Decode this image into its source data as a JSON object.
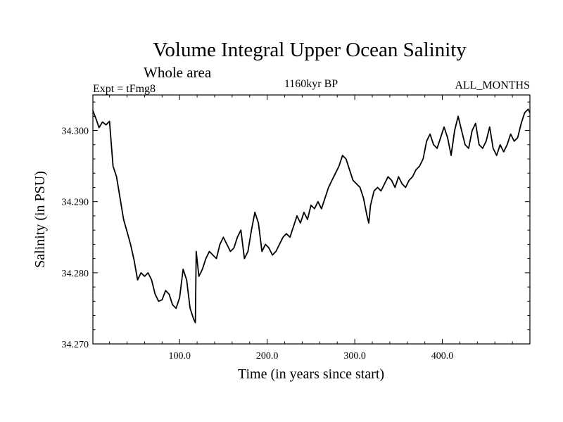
{
  "chart_data": {
    "type": "line",
    "title": "Volume Integral Upper Ocean Salinity",
    "subtitle": "Whole area",
    "left_string": "Expt = tFmg8",
    "center_string": "1160kyr BP",
    "right_string": "ALL_MONTHS",
    "xlabel": "Time (in years since start)",
    "ylabel": "Salinity (in PSU)",
    "xlim": [
      1,
      500
    ],
    "ylim": [
      34.27,
      34.305
    ],
    "xticks": [
      100,
      200,
      300,
      400
    ],
    "xtick_labels": [
      "100.0",
      "200.0",
      "300.0",
      "400.0"
    ],
    "yticks": [
      34.27,
      34.28,
      34.29,
      34.3
    ],
    "ytick_labels": [
      "34.270",
      "34.280",
      "34.290",
      "34.300"
    ],
    "grid": false,
    "series": [
      {
        "name": "Salinity",
        "x": [
          1,
          5,
          8,
          12,
          16,
          20,
          24,
          28,
          32,
          36,
          40,
          44,
          48,
          52,
          56,
          60,
          64,
          68,
          72,
          76,
          80,
          84,
          88,
          92,
          96,
          100,
          104,
          108,
          112,
          116,
          118,
          119,
          122,
          126,
          130,
          134,
          138,
          142,
          146,
          150,
          154,
          158,
          162,
          166,
          170,
          174,
          178,
          182,
          186,
          190,
          194,
          198,
          202,
          206,
          210,
          214,
          218,
          222,
          226,
          230,
          234,
          238,
          242,
          246,
          250,
          254,
          258,
          262,
          266,
          270,
          274,
          278,
          282,
          286,
          290,
          294,
          298,
          302,
          306,
          310,
          314,
          316,
          318,
          322,
          326,
          330,
          334,
          338,
          342,
          346,
          350,
          354,
          358,
          362,
          366,
          370,
          374,
          378,
          382,
          386,
          390,
          394,
          398,
          402,
          406,
          410,
          414,
          418,
          422,
          426,
          430,
          434,
          438,
          442,
          446,
          450,
          454,
          458,
          462,
          466,
          470,
          474,
          478,
          482,
          486,
          490,
          494,
          498,
          500
        ],
        "values": [
          34.3028,
          34.3015,
          34.3004,
          34.3012,
          34.3008,
          34.3013,
          34.295,
          34.2935,
          34.2905,
          34.2875,
          34.2858,
          34.284,
          34.2818,
          34.279,
          34.28,
          34.2795,
          34.28,
          34.279,
          34.277,
          34.276,
          34.2762,
          34.2775,
          34.277,
          34.2755,
          34.275,
          34.2765,
          34.2805,
          34.279,
          34.275,
          34.2735,
          34.273,
          34.283,
          34.2795,
          34.2805,
          34.282,
          34.283,
          34.2825,
          34.282,
          34.284,
          34.285,
          34.284,
          34.283,
          34.2835,
          34.285,
          34.286,
          34.282,
          34.283,
          34.286,
          34.2885,
          34.287,
          34.283,
          34.284,
          34.2835,
          34.2825,
          34.283,
          34.284,
          34.285,
          34.2855,
          34.285,
          34.2865,
          34.288,
          34.287,
          34.2885,
          34.2875,
          34.2895,
          34.289,
          34.29,
          34.289,
          34.2905,
          34.292,
          34.293,
          34.294,
          34.295,
          34.2965,
          34.296,
          34.2945,
          34.293,
          34.2925,
          34.292,
          34.2905,
          34.288,
          34.287,
          34.2895,
          34.2915,
          34.292,
          34.2915,
          34.2925,
          34.2935,
          34.293,
          34.292,
          34.2935,
          34.2925,
          34.292,
          34.293,
          34.2935,
          34.2945,
          34.295,
          34.296,
          34.2985,
          34.2995,
          34.298,
          34.2975,
          34.299,
          34.3005,
          34.299,
          34.2965,
          34.3,
          34.302,
          34.3,
          34.298,
          34.2975,
          34.3,
          34.301,
          34.298,
          34.2975,
          34.2985,
          34.3005,
          34.2975,
          34.2965,
          34.298,
          34.297,
          34.298,
          34.2995,
          34.2985,
          34.299,
          34.301,
          34.3025,
          34.303,
          34.3025
        ]
      }
    ]
  }
}
